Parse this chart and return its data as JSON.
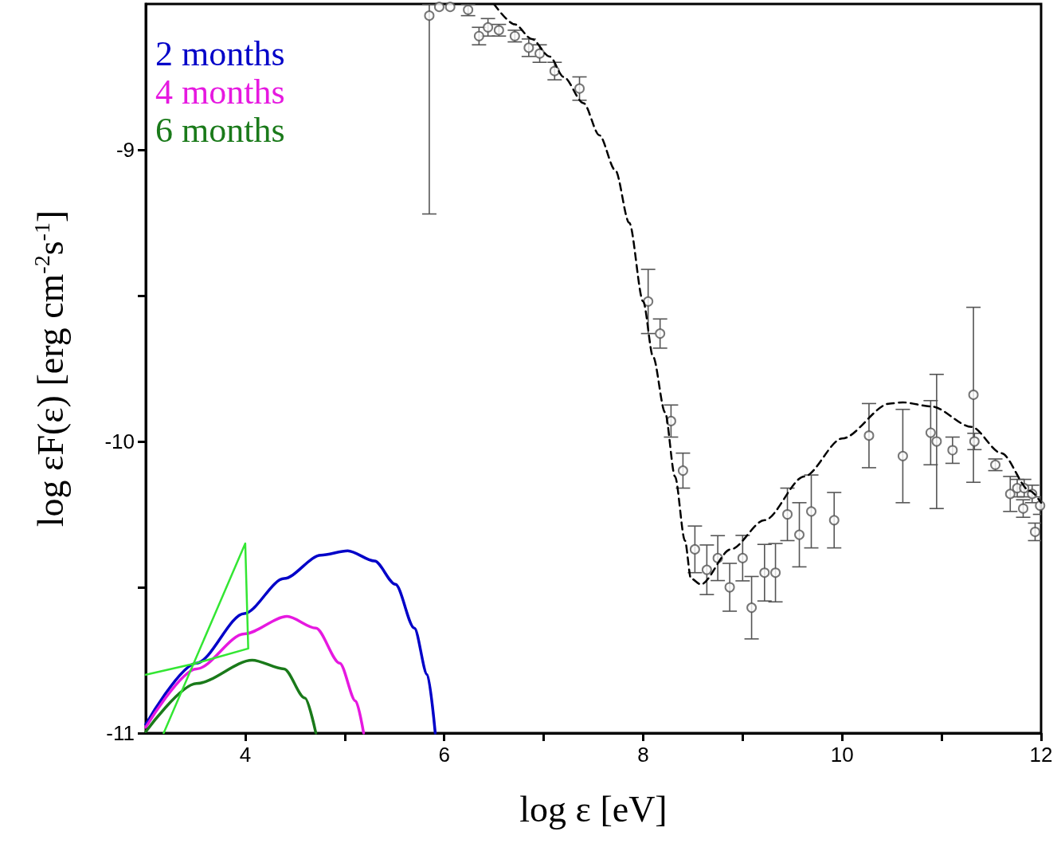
{
  "chart_data": {
    "type": "scatter",
    "xlabel": "log ε [eV]",
    "ylabel": "log εF(ε) [erg cm$^{-2}$s$^{-1}$]",
    "xlim": [
      3,
      12
    ],
    "xticks": [
      4,
      {
        "value": 5,
        "label": null
      },
      6,
      {
        "value": 7,
        "label": null
      },
      8,
      {
        "value": 9,
        "label": null
      },
      10,
      {
        "value": 11,
        "label": null
      },
      12
    ],
    "ylim": [
      -11,
      -8.5
    ],
    "yticks": [
      -11,
      {
        "value": -10.5,
        "label": null
      },
      -10,
      {
        "value": -9.5,
        "label": null
      },
      -9
    ],
    "grid": false,
    "legend": "top left",
    "series": [
      {
        "color": "#555555",
        "marker": "circle",
        "x": [
          5.85,
          5.95,
          6.06,
          6.24,
          6.35,
          6.44,
          6.55,
          6.71,
          6.85,
          6.96,
          7.11,
          7.36,
          8.05,
          8.17,
          8.28,
          8.4,
          8.52,
          8.64,
          8.75,
          8.87,
          9.0,
          9.09,
          9.22,
          9.33,
          9.45,
          9.57,
          9.69,
          9.92,
          10.27,
          10.61,
          10.89,
          10.95,
          11.11,
          11.32,
          11.33,
          11.54,
          11.69,
          11.76,
          11.82,
          11.83,
          11.91,
          11.94,
          11.99
        ],
        "values": [
          -8.54,
          -8.51,
          -8.51,
          -8.52,
          -8.61,
          -8.58,
          -8.59,
          -8.61,
          -8.65,
          -8.67,
          -8.73,
          -8.79,
          -9.52,
          -9.63,
          -9.93,
          -10.1,
          -10.37,
          -10.44,
          -10.4,
          -10.5,
          -10.4,
          -10.57,
          -10.45,
          -10.45,
          -10.25,
          -10.32,
          -10.24,
          -10.27,
          -9.98,
          -10.05,
          -9.97,
          -10.0,
          -10.03,
          -9.84,
          -10.0,
          -10.08,
          -10.18,
          -10.16,
          -10.23,
          -10.16,
          -10.18,
          -10.31,
          -10.22
        ],
        "errors": [
          [
            -9.22,
            -8.5
          ],
          null,
          null,
          0.02,
          0.03,
          0.03,
          0.02,
          0.02,
          0.03,
          0.03,
          0.03,
          0.04,
          0.11,
          0.05,
          0.055,
          0.06,
          0.08,
          0.085,
          0.077,
          0.082,
          0.078,
          0.107,
          0.097,
          0.1,
          0.09,
          0.11,
          0.125,
          0.095,
          0.11,
          0.16,
          0.11,
          0.23,
          0.045,
          0.3,
          0.028,
          0.02,
          0.06,
          0.03,
          0.03,
          0.03,
          0.03,
          0.03,
          0.03
        ]
      },
      {
        "type": "line",
        "color": "#000000",
        "line_style": "dashed",
        "marker": "none",
        "x": [
          6.5,
          6.71,
          6.88,
          7.06,
          7.2,
          7.4,
          7.56,
          7.72,
          7.86,
          8.0,
          8.1,
          8.22,
          8.32,
          8.42,
          8.48,
          8.58,
          8.88,
          9.22,
          9.62,
          10.0,
          10.48,
          10.61,
          10.9,
          11.3,
          11.6,
          11.89,
          12.0
        ],
        "values": [
          -8.5,
          -8.57,
          -8.62,
          -8.68,
          -8.75,
          -8.84,
          -8.95,
          -9.07,
          -9.25,
          -9.52,
          -9.71,
          -9.9,
          -10.12,
          -10.34,
          -10.47,
          -10.49,
          -10.37,
          -10.27,
          -10.12,
          -9.99,
          -9.87,
          -9.866,
          -9.88,
          -9.95,
          -10.04,
          -10.17,
          -10.21
        ]
      },
      {
        "type": "line",
        "name": "2 months",
        "color": "#0000c8",
        "line_style": "solid",
        "marker": "none",
        "x": [
          3,
          3.51,
          3.99,
          4.39,
          4.76,
          5.03,
          5.3,
          5.51,
          5.7,
          5.83,
          5.91
        ],
        "values": [
          -10.97,
          -10.76,
          -10.59,
          -10.47,
          -10.39,
          -10.375,
          -10.41,
          -10.49,
          -10.64,
          -10.8,
          -11
        ]
      },
      {
        "type": "line",
        "name": "4 months",
        "color": "#e619e0",
        "line_style": "solid",
        "marker": "none",
        "x": [
          3,
          3.51,
          3.99,
          4.42,
          4.71,
          4.95,
          5.11,
          5.19
        ],
        "values": [
          -10.98,
          -10.78,
          -10.66,
          -10.6,
          -10.64,
          -10.76,
          -10.89,
          -11
        ]
      },
      {
        "type": "line",
        "name": "6 months",
        "color": "#1a7a1a",
        "line_style": "solid",
        "marker": "none",
        "x": [
          3,
          3.51,
          4.07,
          4.39,
          4.6,
          4.71
        ],
        "values": [
          -10.995,
          -10.83,
          -10.75,
          -10.78,
          -10.88,
          -11
        ]
      },
      {
        "type": "line",
        "color": "#33e633",
        "line_style": "solid",
        "marker": "none",
        "x": [
          3,
          3.51,
          4.03,
          4.0,
          3.18
        ],
        "values": [
          -10.8,
          -10.76,
          -10.71,
          -10.35,
          -11
        ]
      }
    ]
  }
}
